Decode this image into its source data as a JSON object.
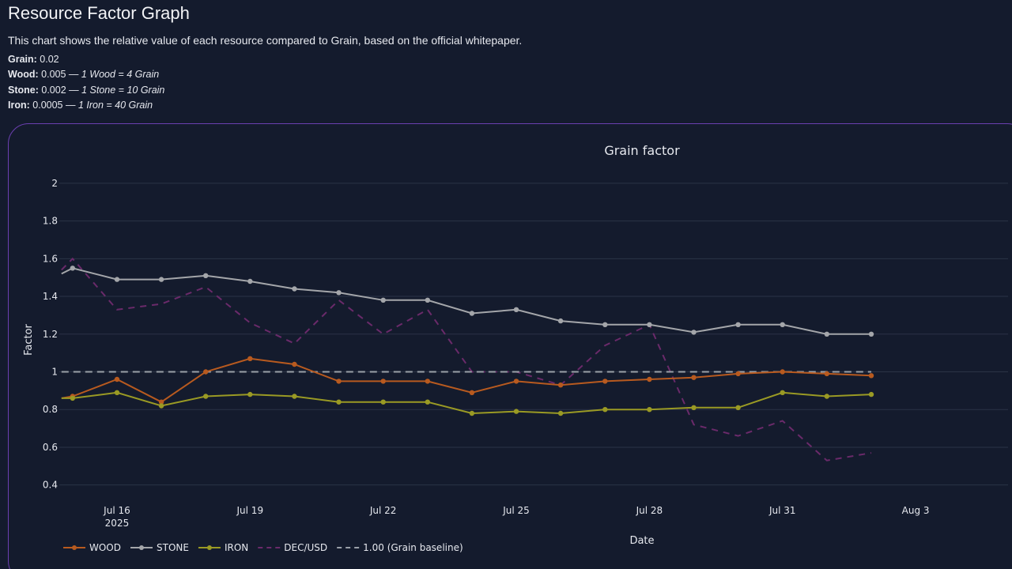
{
  "header": {
    "title": "Resource Factor Graph",
    "description": "This chart shows the relative value of each resource compared to Grain, based on the official whitepaper."
  },
  "rates": [
    {
      "name": "Grain:",
      "value": "0.02",
      "note": ""
    },
    {
      "name": "Wood:",
      "value": "0.005 — ",
      "note": "1 Wood = 4 Grain"
    },
    {
      "name": "Stone:",
      "value": "0.002 — ",
      "note": "1 Stone = 10 Grain"
    },
    {
      "name": "Iron:",
      "value": "0.0005 — ",
      "note": "1 Iron = 40 Grain"
    }
  ],
  "colors": {
    "wood": "#b85a1f",
    "stone": "#a4a6aa",
    "iron": "#9a9a24",
    "decusd": "#6a2a6a",
    "baseline": "#9aa0a8",
    "grid": "#2a3346",
    "card_border": "#6b3fb0"
  },
  "chart_data": {
    "type": "line",
    "title": "Grain factor",
    "xlabel": "Date",
    "ylabel": "Factor",
    "x_ticks": [
      {
        "date": "2025-07-16",
        "label": "Jul 16",
        "sublabel": "2025"
      },
      {
        "date": "2025-07-19",
        "label": "Jul 19",
        "sublabel": ""
      },
      {
        "date": "2025-07-22",
        "label": "Jul 22",
        "sublabel": ""
      },
      {
        "date": "2025-07-25",
        "label": "Jul 25",
        "sublabel": ""
      },
      {
        "date": "2025-07-28",
        "label": "Jul 28",
        "sublabel": ""
      },
      {
        "date": "2025-07-31",
        "label": "Jul 31",
        "sublabel": ""
      },
      {
        "date": "2025-08-03",
        "label": "Aug 3",
        "sublabel": ""
      }
    ],
    "y_ticks": [
      "0.4",
      "0.6",
      "0.8",
      "1",
      "1.2",
      "1.4",
      "1.6",
      "1.8",
      "2"
    ],
    "xlim": [
      "2025-07-14T16:48",
      "2025-08-05T02:00"
    ],
    "ylim": [
      0.34,
      2.1
    ],
    "grid": true,
    "legend_position": "bottom-left",
    "series": [
      {
        "name": "WOOD",
        "key": "wood",
        "style": "solid",
        "markers": true,
        "points": [
          [
            "2025-07-14T18:00",
            0.86
          ],
          [
            "2025-07-15",
            0.87
          ],
          [
            "2025-07-16",
            0.96
          ],
          [
            "2025-07-17",
            0.84
          ],
          [
            "2025-07-18",
            1.0
          ],
          [
            "2025-07-19",
            1.07
          ],
          [
            "2025-07-20",
            1.04
          ],
          [
            "2025-07-21",
            0.95
          ],
          [
            "2025-07-22",
            0.95
          ],
          [
            "2025-07-23",
            0.95
          ],
          [
            "2025-07-24",
            0.89
          ],
          [
            "2025-07-25",
            0.95
          ],
          [
            "2025-07-26",
            0.93
          ],
          [
            "2025-07-27",
            0.95
          ],
          [
            "2025-07-28",
            0.96
          ],
          [
            "2025-07-29",
            0.97
          ],
          [
            "2025-07-30",
            0.99
          ],
          [
            "2025-07-31",
            1.0
          ],
          [
            "2025-08-01",
            0.99
          ],
          [
            "2025-08-02",
            0.98
          ]
        ]
      },
      {
        "name": "STONE",
        "key": "stone",
        "style": "solid",
        "markers": true,
        "points": [
          [
            "2025-07-14T18:00",
            1.52
          ],
          [
            "2025-07-15",
            1.55
          ],
          [
            "2025-07-16",
            1.49
          ],
          [
            "2025-07-17",
            1.49
          ],
          [
            "2025-07-18",
            1.51
          ],
          [
            "2025-07-19",
            1.48
          ],
          [
            "2025-07-20",
            1.44
          ],
          [
            "2025-07-21",
            1.42
          ],
          [
            "2025-07-22",
            1.38
          ],
          [
            "2025-07-23",
            1.38
          ],
          [
            "2025-07-24",
            1.31
          ],
          [
            "2025-07-25",
            1.33
          ],
          [
            "2025-07-26",
            1.27
          ],
          [
            "2025-07-27",
            1.25
          ],
          [
            "2025-07-28",
            1.25
          ],
          [
            "2025-07-29",
            1.21
          ],
          [
            "2025-07-30",
            1.25
          ],
          [
            "2025-07-31",
            1.25
          ],
          [
            "2025-08-01",
            1.2
          ],
          [
            "2025-08-02",
            1.2
          ]
        ]
      },
      {
        "name": "IRON",
        "key": "iron",
        "style": "solid",
        "markers": true,
        "points": [
          [
            "2025-07-14T18:00",
            0.86
          ],
          [
            "2025-07-15",
            0.86
          ],
          [
            "2025-07-16",
            0.89
          ],
          [
            "2025-07-17",
            0.82
          ],
          [
            "2025-07-18",
            0.87
          ],
          [
            "2025-07-19",
            0.88
          ],
          [
            "2025-07-20",
            0.87
          ],
          [
            "2025-07-21",
            0.84
          ],
          [
            "2025-07-22",
            0.84
          ],
          [
            "2025-07-23",
            0.84
          ],
          [
            "2025-07-24",
            0.78
          ],
          [
            "2025-07-25",
            0.79
          ],
          [
            "2025-07-26",
            0.78
          ],
          [
            "2025-07-27",
            0.8
          ],
          [
            "2025-07-28",
            0.8
          ],
          [
            "2025-07-29",
            0.81
          ],
          [
            "2025-07-30",
            0.81
          ],
          [
            "2025-07-31",
            0.89
          ],
          [
            "2025-08-01",
            0.87
          ],
          [
            "2025-08-02",
            0.88
          ]
        ]
      },
      {
        "name": "DEC/USD",
        "key": "decusd",
        "style": "dash",
        "markers": false,
        "points": [
          [
            "2025-07-14T18:00",
            1.54
          ],
          [
            "2025-07-15",
            1.6
          ],
          [
            "2025-07-16",
            1.33
          ],
          [
            "2025-07-17",
            1.36
          ],
          [
            "2025-07-18",
            1.45
          ],
          [
            "2025-07-19",
            1.26
          ],
          [
            "2025-07-20",
            1.15
          ],
          [
            "2025-07-21",
            1.38
          ],
          [
            "2025-07-22",
            1.2
          ],
          [
            "2025-07-23",
            1.33
          ],
          [
            "2025-07-24",
            1.0
          ],
          [
            "2025-07-25",
            1.0
          ],
          [
            "2025-07-26",
            0.93
          ],
          [
            "2025-07-27",
            1.14
          ],
          [
            "2025-07-28",
            1.25
          ],
          [
            "2025-07-29",
            0.72
          ],
          [
            "2025-07-30",
            0.66
          ],
          [
            "2025-07-31",
            0.74
          ],
          [
            "2025-08-01",
            0.53
          ],
          [
            "2025-08-02",
            0.57
          ]
        ]
      },
      {
        "name": "1.00 (Grain baseline)",
        "key": "baseline",
        "style": "dash",
        "markers": false,
        "points": [
          [
            "2025-07-14T18:00",
            1.0
          ],
          [
            "2025-08-02",
            1.0
          ]
        ]
      }
    ]
  }
}
